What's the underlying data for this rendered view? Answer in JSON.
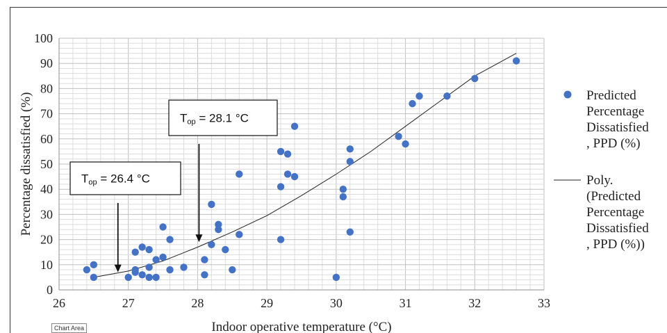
{
  "chart_data": {
    "type": "scatter",
    "xlabel": "Indoor operative temperature (°C)",
    "ylabel": "Percentage dissatisfied (%)",
    "xlim": [
      26,
      33
    ],
    "ylim": [
      0,
      100
    ],
    "x_ticks": [
      "26",
      "27",
      "28",
      "29",
      "30",
      "31",
      "32",
      "33"
    ],
    "y_ticks": [
      "0",
      "10",
      "20",
      "30",
      "40",
      "50",
      "60",
      "70",
      "80",
      "90",
      "100"
    ],
    "grid": true,
    "legend_position": "right",
    "series": [
      {
        "name": "Predicted Percentage Dissatisfied , PPD (%)",
        "legend_lines": [
          "Predicted",
          "Percentage",
          "Dissatisfied",
          ", PPD (%)"
        ],
        "type": "scatter",
        "color": "#4472c4",
        "points": [
          [
            26.4,
            8
          ],
          [
            26.5,
            10
          ],
          [
            26.5,
            5
          ],
          [
            27.0,
            5
          ],
          [
            27.1,
            15
          ],
          [
            27.1,
            8
          ],
          [
            27.1,
            7
          ],
          [
            27.2,
            17
          ],
          [
            27.2,
            6
          ],
          [
            27.3,
            16
          ],
          [
            27.3,
            9
          ],
          [
            27.3,
            5
          ],
          [
            27.4,
            12
          ],
          [
            27.4,
            5
          ],
          [
            27.5,
            25
          ],
          [
            27.5,
            13
          ],
          [
            27.6,
            20
          ],
          [
            27.6,
            8
          ],
          [
            27.8,
            9
          ],
          [
            28.1,
            12
          ],
          [
            28.1,
            6
          ],
          [
            28.2,
            34
          ],
          [
            28.2,
            18
          ],
          [
            28.3,
            26
          ],
          [
            28.3,
            24
          ],
          [
            28.4,
            16
          ],
          [
            28.5,
            8
          ],
          [
            28.6,
            46
          ],
          [
            28.6,
            22
          ],
          [
            29.2,
            55
          ],
          [
            29.2,
            41
          ],
          [
            29.2,
            20
          ],
          [
            29.3,
            54
          ],
          [
            29.3,
            46
          ],
          [
            29.4,
            65
          ],
          [
            29.4,
            45
          ],
          [
            30.0,
            5
          ],
          [
            30.1,
            40
          ],
          [
            30.1,
            37
          ],
          [
            30.2,
            56
          ],
          [
            30.2,
            51
          ],
          [
            30.2,
            23
          ],
          [
            30.9,
            61
          ],
          [
            31.0,
            58
          ],
          [
            31.1,
            74
          ],
          [
            31.2,
            77
          ],
          [
            31.6,
            77
          ],
          [
            32.0,
            84
          ],
          [
            32.6,
            91
          ]
        ]
      },
      {
        "name": "Poly. (Predicted Percentage Dissatisfied , PPD (%))",
        "legend_lines": [
          "Poly.",
          "(Predicted",
          "Percentage",
          "Dissatisfied",
          ", PPD (%))"
        ],
        "type": "line",
        "color": "#222222",
        "points": [
          [
            26.5,
            5
          ],
          [
            27.0,
            7.5
          ],
          [
            27.5,
            11.5
          ],
          [
            28.0,
            17
          ],
          [
            28.5,
            23
          ],
          [
            29.0,
            29.5
          ],
          [
            29.5,
            37.5
          ],
          [
            30.0,
            46
          ],
          [
            30.5,
            55
          ],
          [
            31.0,
            65
          ],
          [
            31.5,
            75
          ],
          [
            32.0,
            85
          ],
          [
            32.6,
            94
          ]
        ]
      }
    ],
    "annotations": [
      {
        "label": "T",
        "sub": "op",
        "rest": " = 26.4 °C",
        "arrow_x": 26.85,
        "arrow_tip_y": 7
      },
      {
        "label": "T",
        "sub": "op",
        "rest": " = 28.1 °C",
        "arrow_x": 28.02,
        "arrow_tip_y": 19
      }
    ]
  },
  "ui": {
    "chart_area_tag": "Chart Area"
  }
}
